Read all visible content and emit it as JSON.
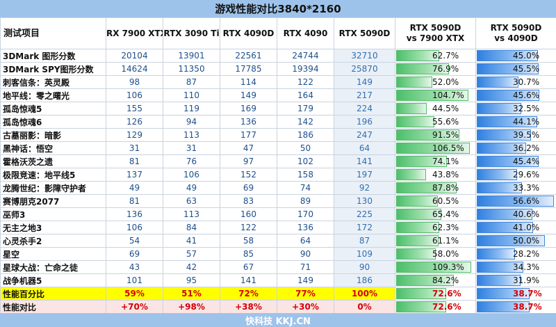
{
  "title": "游戏性能对比3840*2160",
  "footer": "快科技 KKJ.CN",
  "colors": {
    "header_bg": "#9ec3ea",
    "green_bar": "#4bbf6a",
    "blue_bar": "#2f7fe0",
    "highlight_yellow": "#ffff00",
    "red_text": "#d4000a"
  },
  "chart_data": {
    "type": "table",
    "columns": [
      "测试项目",
      "RX 7900 XTX",
      "RTX 3090 Ti",
      "RTX 4090D",
      "RTX 4090",
      "RTX 5090D",
      "RTX 5090D vs 7900 XTX",
      "RTX 5090D vs 4090D"
    ],
    "column_header_lines": [
      [
        "测试项目"
      ],
      [
        "RX 7900 XTX"
      ],
      [
        "RTX 3090 Ti"
      ],
      [
        "RTX 4090D"
      ],
      [
        "RTX 4090"
      ],
      [
        "RTX 5090D"
      ],
      [
        "RTX 5090D",
        "vs 7900 XTX"
      ],
      [
        "RTX 5090D",
        "vs 4090D"
      ]
    ],
    "rows": [
      {
        "name": "3DMark 图形分数",
        "values": [
          "20104",
          "13901",
          "22561",
          "24744",
          "32710"
        ],
        "vs_7900xtx": 62.7,
        "vs_4090d": 45.0
      },
      {
        "name": "3DMark SPY图形分数",
        "values": [
          "14624",
          "11350",
          "17785",
          "19394",
          "25870"
        ],
        "vs_7900xtx": 76.9,
        "vs_4090d": 45.5
      },
      {
        "name": "刺客信条：英灵殿",
        "values": [
          "98",
          "87",
          "114",
          "122",
          "149"
        ],
        "vs_7900xtx": 52.0,
        "vs_4090d": 30.7
      },
      {
        "name": "地平线：零之曙光",
        "values": [
          "106",
          "110",
          "149",
          "164",
          "217"
        ],
        "vs_7900xtx": 104.7,
        "vs_4090d": 45.6
      },
      {
        "name": "孤岛惊魂5",
        "values": [
          "155",
          "119",
          "169",
          "179",
          "224"
        ],
        "vs_7900xtx": 44.5,
        "vs_4090d": 32.5
      },
      {
        "name": "孤岛惊魂6",
        "values": [
          "126",
          "94",
          "136",
          "142",
          "196"
        ],
        "vs_7900xtx": 55.6,
        "vs_4090d": 44.1
      },
      {
        "name": "古墓丽影：暗影",
        "values": [
          "129",
          "113",
          "177",
          "186",
          "247"
        ],
        "vs_7900xtx": 91.5,
        "vs_4090d": 39.5
      },
      {
        "name": "黑神话：悟空",
        "values": [
          "31",
          "31",
          "47",
          "50",
          "64"
        ],
        "vs_7900xtx": 106.5,
        "vs_4090d": 36.2
      },
      {
        "name": "霍格沃茨之遗",
        "values": [
          "81",
          "76",
          "97",
          "102",
          "141"
        ],
        "vs_7900xtx": 74.1,
        "vs_4090d": 45.4
      },
      {
        "name": "极限竞速：地平线5",
        "values": [
          "137",
          "106",
          "152",
          "158",
          "197"
        ],
        "vs_7900xtx": 43.8,
        "vs_4090d": 29.6
      },
      {
        "name": "龙腾世纪：影障守护者",
        "values": [
          "49",
          "49",
          "69",
          "74",
          "92"
        ],
        "vs_7900xtx": 87.8,
        "vs_4090d": 33.3
      },
      {
        "name": "赛博朋克2077",
        "values": [
          "81",
          "63",
          "83",
          "89",
          "130"
        ],
        "vs_7900xtx": 60.5,
        "vs_4090d": 56.6
      },
      {
        "name": "巫师3",
        "values": [
          "136",
          "113",
          "160",
          "170",
          "225"
        ],
        "vs_7900xtx": 65.4,
        "vs_4090d": 40.6
      },
      {
        "name": "无主之地3",
        "values": [
          "106",
          "84",
          "122",
          "136",
          "172"
        ],
        "vs_7900xtx": 62.3,
        "vs_4090d": 41.0
      },
      {
        "name": "心灵杀手2",
        "values": [
          "54",
          "41",
          "58",
          "64",
          "87"
        ],
        "vs_7900xtx": 61.1,
        "vs_4090d": 50.0
      },
      {
        "name": "星空",
        "values": [
          "69",
          "57",
          "85",
          "90",
          "109"
        ],
        "vs_7900xtx": 58.0,
        "vs_4090d": 28.2
      },
      {
        "name": "星球大战：亡命之徒",
        "values": [
          "43",
          "42",
          "67",
          "71",
          "90"
        ],
        "vs_7900xtx": 109.3,
        "vs_4090d": 34.3
      },
      {
        "name": "战争机器5",
        "values": [
          "101",
          "95",
          "141",
          "149",
          "186"
        ],
        "vs_7900xtx": 84.2,
        "vs_4090d": 31.9
      }
    ],
    "summary_rows": [
      {
        "name": "性能百分比",
        "values": [
          "59%",
          "51%",
          "72%",
          "77%",
          "100%"
        ],
        "vs_7900xtx": 72.6,
        "vs_4090d": 38.7,
        "style": "yellow"
      },
      {
        "name": "性能对比",
        "values": [
          "+70%",
          "+98%",
          "+38%",
          "+30%",
          "0%"
        ],
        "vs_7900xtx": 72.6,
        "vs_4090d": 38.7,
        "style": "pink"
      }
    ],
    "bar_scale_max_vs_7900xtx": 115,
    "bar_scale_max_vs_4090d": 58
  }
}
